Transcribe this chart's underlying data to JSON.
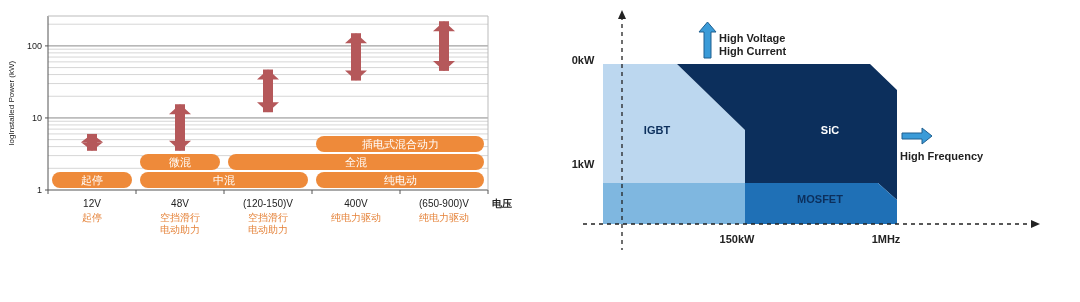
{
  "chart_data": [
    {
      "type": "bar",
      "categories": [
        "12V",
        "48V",
        "(120-150)V",
        "400V",
        "(650-900)V"
      ],
      "base": [
        3.5,
        3.5,
        12,
        33,
        45
      ],
      "values": [
        2.5,
        12,
        35,
        117,
        175
      ],
      "color": "#b5585a",
      "log": true,
      "ylim": [
        1,
        260
      ],
      "yticks": [
        1,
        10,
        100
      ],
      "grid": "y",
      "ylabel": "logInstalled Power (kW)",
      "xlabel": "电压",
      "bands": [
        {
          "axis": "x",
          "from": "12V",
          "to": "12V",
          "label": "起停",
          "color": "#ee8a3a"
        },
        {
          "axis": "x",
          "from": "48V",
          "to": "(120-150)V",
          "label": "中混",
          "color": "#ee8a3a"
        },
        {
          "axis": "x",
          "from": "400V",
          "to": "(650-900)V",
          "label": "纯电动",
          "color": "#ee8a3a"
        },
        {
          "axis": "x",
          "from": "48V",
          "to": "48V",
          "label": "微混",
          "color": "#ee8a3a"
        },
        {
          "axis": "x",
          "from": "(120-150)V",
          "to": "(650-900)V",
          "label": "全混",
          "color": "#ee8a3a"
        },
        {
          "axis": "x",
          "from": "400V",
          "to": "(650-900)V",
          "label": "插电式混合动力",
          "color": "#ee8a3a"
        }
      ],
      "annotations": [
        "起停",
        "空挡滑行电动助力",
        "空挡滑行电动助力",
        "纯电力驱动",
        "纯电力驱动"
      ]
    },
    {
      "type": "other",
      "annotations": [
        "0kW",
        "1kW",
        "150kW",
        "1MHz",
        "High Voltage\nHigh Current",
        "High Frequency",
        "IGBT",
        "SiC",
        "MOSFET"
      ]
    }
  ]
}
